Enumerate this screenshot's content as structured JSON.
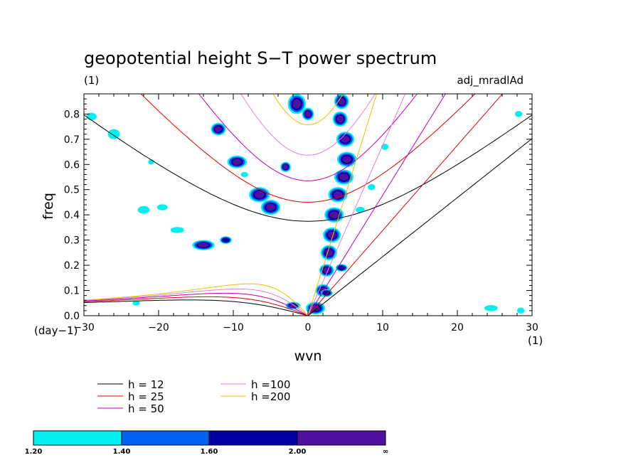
{
  "chart_data": {
    "type": "heatmap",
    "title": "geopotential height S−T power spectrum",
    "subtitle_left": "(1)",
    "subtitle_right": "adj_mradlAd",
    "xlabel": "wvn",
    "ylabel": "freq",
    "x_unit_label": "(1)",
    "y_unit_label": "(day−1)",
    "xlim": [
      -30,
      30
    ],
    "ylim": [
      0,
      0.88
    ],
    "x_ticks": [
      -30,
      -20,
      -10,
      0,
      10,
      20,
      30
    ],
    "y_ticks": [
      0.0,
      0.1,
      0.2,
      0.3,
      0.4,
      0.5,
      0.6,
      0.7,
      0.8
    ],
    "x_tick_labels": [
      "−30",
      "−20",
      "−10",
      "0",
      "10",
      "20",
      "30"
    ],
    "y_tick_labels": [
      "0.0",
      "0.1",
      "0.2",
      "0.3",
      "0.4",
      "0.5",
      "0.6",
      "0.7",
      "0.8"
    ],
    "grid": false,
    "dispersion_curves": [
      {
        "label": "h = 12",
        "h": 12,
        "color": "#000000"
      },
      {
        "label": "h = 25",
        "h": 25,
        "color": "#e00000"
      },
      {
        "label": "h = 50",
        "h": 50,
        "color": "#c000b0"
      },
      {
        "label": "h =100",
        "h": 100,
        "color": "#e080e0"
      },
      {
        "label": "h =200",
        "h": 200,
        "color": "#f0c000"
      }
    ],
    "color_levels": [
      {
        "from": "1.20",
        "to": "1.40",
        "color": "#00f0f0"
      },
      {
        "from": "1.40",
        "to": "1.60",
        "color": "#0060f0"
      },
      {
        "from": "1.60",
        "to": "2.00",
        "color": "#0000a0"
      },
      {
        "from": "2.00",
        "to": "∞",
        "color": "#5010a0"
      }
    ],
    "colorbar_labels": [
      "1.20",
      "1.40",
      "1.60",
      "2.00",
      "∞"
    ],
    "spectral_features": [
      {
        "x": 4.5,
        "y": 0.85,
        "level": 3,
        "w": 1.0,
        "h": 0.03
      },
      {
        "x": 4.3,
        "y": 0.78,
        "level": 3,
        "w": 1.0,
        "h": 0.03
      },
      {
        "x": 5.0,
        "y": 0.7,
        "level": 3,
        "w": 1.2,
        "h": 0.03
      },
      {
        "x": 5.2,
        "y": 0.62,
        "level": 3,
        "w": 1.3,
        "h": 0.03
      },
      {
        "x": 4.8,
        "y": 0.55,
        "level": 3,
        "w": 1.3,
        "h": 0.03
      },
      {
        "x": 4.0,
        "y": 0.48,
        "level": 3,
        "w": 1.3,
        "h": 0.03
      },
      {
        "x": 3.5,
        "y": 0.4,
        "level": 3,
        "w": 1.3,
        "h": 0.03
      },
      {
        "x": 3.2,
        "y": 0.32,
        "level": 3,
        "w": 1.2,
        "h": 0.03
      },
      {
        "x": 2.8,
        "y": 0.25,
        "level": 3,
        "w": 1.1,
        "h": 0.03
      },
      {
        "x": 2.5,
        "y": 0.18,
        "level": 3,
        "w": 1.0,
        "h": 0.025
      },
      {
        "x": 2.0,
        "y": 0.1,
        "level": 3,
        "w": 1.0,
        "h": 0.025
      },
      {
        "x": 1.0,
        "y": 0.03,
        "level": 3,
        "w": 1.3,
        "h": 0.025
      },
      {
        "x": -1.5,
        "y": 0.84,
        "level": 3,
        "w": 1.2,
        "h": 0.04
      },
      {
        "x": 0.0,
        "y": 0.8,
        "level": 3,
        "w": 0.8,
        "h": 0.025
      },
      {
        "x": -12.0,
        "y": 0.74,
        "level": 3,
        "w": 1.0,
        "h": 0.025
      },
      {
        "x": -9.5,
        "y": 0.61,
        "level": 3,
        "w": 1.3,
        "h": 0.025
      },
      {
        "x": -3.0,
        "y": 0.59,
        "level": 3,
        "w": 0.7,
        "h": 0.02
      },
      {
        "x": -6.5,
        "y": 0.48,
        "level": 3,
        "w": 1.4,
        "h": 0.03
      },
      {
        "x": -5.0,
        "y": 0.43,
        "level": 3,
        "w": 1.3,
        "h": 0.03
      },
      {
        "x": -14.0,
        "y": 0.28,
        "level": 3,
        "w": 1.5,
        "h": 0.02
      },
      {
        "x": -11.0,
        "y": 0.3,
        "level": 2,
        "w": 0.8,
        "h": 0.015
      },
      {
        "x": -2.0,
        "y": 0.04,
        "level": 3,
        "w": 1.0,
        "h": 0.015
      },
      {
        "x": 2.5,
        "y": 0.09,
        "level": 2,
        "w": 0.8,
        "h": 0.015
      },
      {
        "x": 4.5,
        "y": 0.19,
        "level": 2,
        "w": 0.8,
        "h": 0.015
      },
      {
        "x": -26.0,
        "y": 0.72,
        "level": 0,
        "w": 0.8,
        "h": 0.02
      },
      {
        "x": -29.0,
        "y": 0.79,
        "level": 0,
        "w": 0.7,
        "h": 0.015
      },
      {
        "x": -22.0,
        "y": 0.42,
        "level": 0,
        "w": 0.8,
        "h": 0.015
      },
      {
        "x": -19.5,
        "y": 0.43,
        "level": 0,
        "w": 0.7,
        "h": 0.012
      },
      {
        "x": -17.5,
        "y": 0.34,
        "level": 0,
        "w": 0.9,
        "h": 0.012
      },
      {
        "x": 7.0,
        "y": 0.42,
        "level": 0,
        "w": 0.6,
        "h": 0.012
      },
      {
        "x": 8.5,
        "y": 0.51,
        "level": 0,
        "w": 0.5,
        "h": 0.012
      },
      {
        "x": 10.3,
        "y": 0.67,
        "level": 0,
        "w": 0.5,
        "h": 0.012
      },
      {
        "x": 24.5,
        "y": 0.03,
        "level": 0,
        "w": 0.9,
        "h": 0.012
      },
      {
        "x": 28.5,
        "y": 0.02,
        "level": 0,
        "w": 0.5,
        "h": 0.012
      },
      {
        "x": 28.2,
        "y": 0.8,
        "level": 0,
        "w": 0.5,
        "h": 0.012
      },
      {
        "x": -23.0,
        "y": 0.05,
        "level": 0,
        "w": 0.5,
        "h": 0.01
      },
      {
        "x": -8.5,
        "y": 0.56,
        "level": 0,
        "w": 0.5,
        "h": 0.01
      },
      {
        "x": -21.0,
        "y": 0.61,
        "level": 0,
        "w": 0.4,
        "h": 0.01
      }
    ]
  }
}
